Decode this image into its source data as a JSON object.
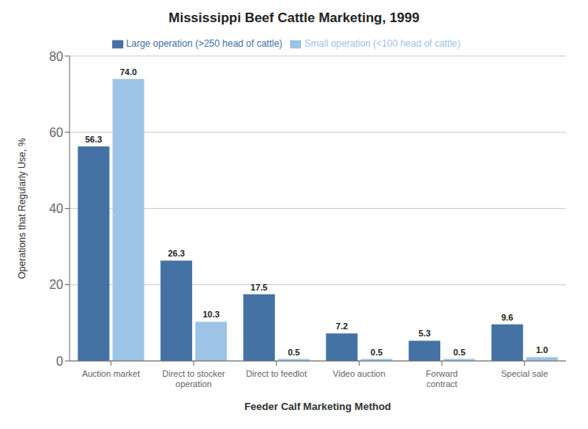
{
  "chart_data": {
    "type": "bar",
    "title": "Mississippi Beef Cattle Marketing, 1999",
    "xlabel": "Feeder Calf Marketing Method",
    "ylabel": "Operations that Regularly Use, %",
    "categories": [
      "Auction market",
      "Direct to stocker\noperation",
      "Direct to feedlot",
      "Video auction",
      "Forward\ncontract",
      "Special sale"
    ],
    "series": [
      {
        "name": "Large operation (>250 head of cattle)",
        "color": "#4472A4",
        "values": [
          56.3,
          26.3,
          17.5,
          7.2,
          5.3,
          9.6
        ]
      },
      {
        "name": "Small operation (<100 head of cattle)",
        "color": "#9DC3E6",
        "values": [
          74.0,
          10.3,
          0.5,
          0.5,
          0.5,
          1.0
        ],
        "value_labels": [
          "74.0",
          "10.3",
          "0.5",
          "0.5",
          "0.5",
          "1.0"
        ]
      }
    ],
    "ylim": [
      0,
      80
    ],
    "yticks": [
      0,
      20,
      40,
      60,
      80
    ],
    "grid": true,
    "legend": "top",
    "data_labels": true
  }
}
